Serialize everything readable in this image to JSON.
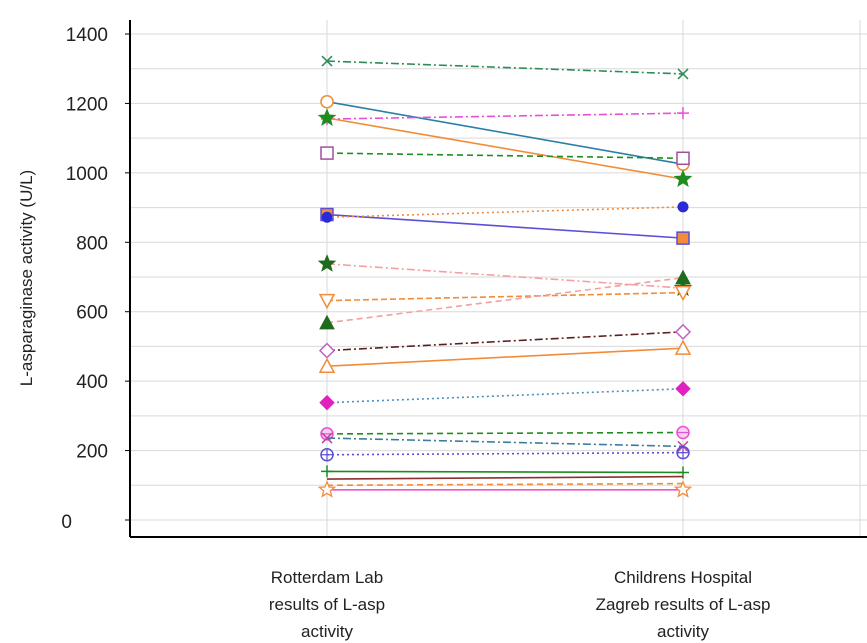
{
  "chart_data": {
    "type": "line",
    "ylabel": "L-asparaginase activity (U/L)",
    "ylim": [
      0,
      1400
    ],
    "yticks": [
      0,
      200,
      400,
      600,
      800,
      1000,
      1200,
      1400
    ],
    "categories": [
      [
        "Rotterdam Lab",
        "results of L-asp",
        "activity"
      ],
      [
        "Childrens Hospital",
        "Zagreb results of L-asp",
        "activity"
      ]
    ],
    "grid": true,
    "series": [
      {
        "values": [
          1322,
          1285
        ],
        "color": "#2e8b57",
        "marker": "x",
        "dash": "8,3,2,3"
      },
      {
        "values": [
          1205,
          1025
        ],
        "color": "#2a7fa8",
        "marker": "circle-open",
        "marker_color": "#f28c38",
        "dash": ""
      },
      {
        "values": [
          1155,
          1172
        ],
        "color": "#e84fd6",
        "marker": "plus",
        "dash": "8,3,2,3"
      },
      {
        "values": [
          1158,
          982
        ],
        "color": "#f28c38",
        "marker": "star",
        "marker_color": "#1e8c1e",
        "dash": ""
      },
      {
        "values": [
          1057,
          1042
        ],
        "color": "#1e8c1e",
        "marker": "square-open",
        "marker_color": "#a0509a",
        "dash": "6,4"
      },
      {
        "values": [
          880,
          812
        ],
        "color": "#5b4fd6",
        "marker": "square",
        "marker_color": "#f28c38",
        "dash": ""
      },
      {
        "values": [
          872,
          902
        ],
        "color": "#f28c38",
        "marker": "circle",
        "marker_color": "#2a2ad6",
        "dash": "2,3"
      },
      {
        "values": [
          738,
          668
        ],
        "color": "#f4a0a0",
        "marker": "star",
        "marker_color": "#1e6b1e",
        "dash": "8,3,2,3"
      },
      {
        "values": [
          632,
          655
        ],
        "color": "#f28c38",
        "marker": "triangle-down-open",
        "dash": "6,3"
      },
      {
        "values": [
          568,
          698
        ],
        "color": "#f4a0a0",
        "marker": "triangle",
        "marker_color": "#1e6b1e",
        "dash": "6,4"
      },
      {
        "values": [
          488,
          542
        ],
        "color": "#5a2020",
        "marker": "diamond-open",
        "marker_color": "#c060c0",
        "dash": "8,3,2,3"
      },
      {
        "values": [
          443,
          495
        ],
        "color": "#f28c38",
        "marker": "triangle-open",
        "dash": ""
      },
      {
        "values": [
          338,
          378
        ],
        "color": "#4a90c0",
        "marker": "diamond",
        "marker_color": "#e020c0",
        "dash": "2,3"
      },
      {
        "values": [
          248,
          252
        ],
        "color": "#1e8c1e",
        "marker": "circle-cross",
        "marker_color": "#e84fd6",
        "dash": "6,4"
      },
      {
        "values": [
          236,
          212
        ],
        "color": "#3a7a9a",
        "marker": "x",
        "marker_color": "#c040a0",
        "dash": "8,3,2,3"
      },
      {
        "values": [
          188,
          194
        ],
        "color": "#5b4fd6",
        "marker": "circle-plus",
        "marker_color": "#5b4fd6",
        "dash": "2,3"
      },
      {
        "values": [
          140,
          137
        ],
        "color": "#1e8c1e",
        "marker": "plus",
        "dash": ""
      },
      {
        "values": [
          118,
          125
        ],
        "color": "#8b3030",
        "marker": "none",
        "dash": ""
      },
      {
        "values": [
          100,
          105
        ],
        "color": "#f28c38",
        "marker": "none",
        "dash": "6,4"
      },
      {
        "values": [
          87,
          87
        ],
        "color": "#f24fd6",
        "marker": "star-open",
        "marker_color": "#f28c38",
        "dash": ""
      }
    ]
  }
}
